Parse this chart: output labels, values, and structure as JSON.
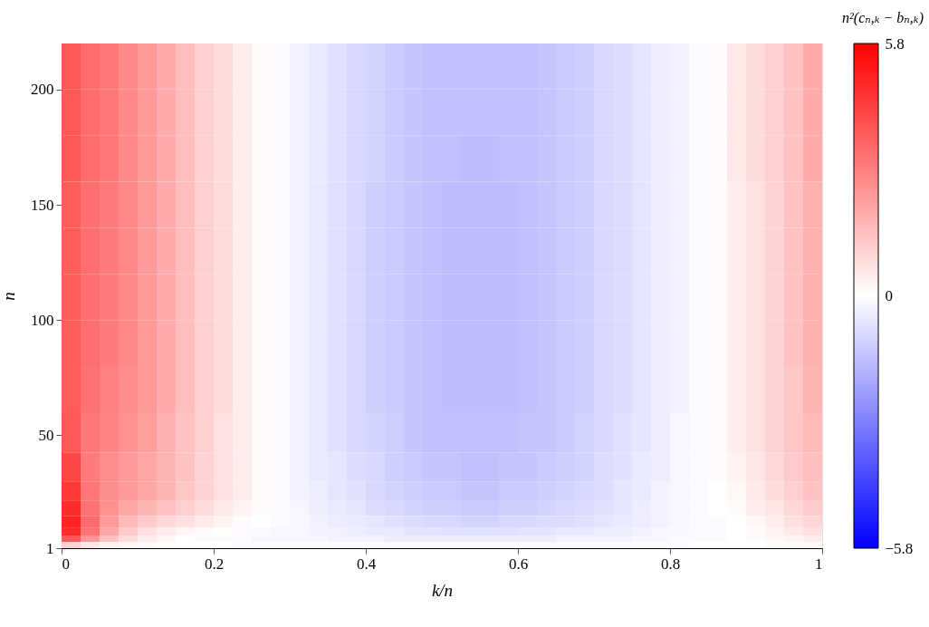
{
  "chart_data": {
    "type": "heatmap",
    "xlabel": "k/n",
    "ylabel": "n",
    "clabel": "n²(cₙ,ₖ − bₙ,ₖ)",
    "x": [
      0.0125,
      0.0375,
      0.0625,
      0.0875,
      0.1125,
      0.1375,
      0.1625,
      0.1875,
      0.2125,
      0.2375,
      0.2625,
      0.2875,
      0.3125,
      0.3375,
      0.3625,
      0.3875,
      0.4125,
      0.4375,
      0.4625,
      0.4875,
      0.5125,
      0.5375,
      0.5625,
      0.5875,
      0.6125,
      0.6375,
      0.6625,
      0.6875,
      0.7125,
      0.7375,
      0.7625,
      0.7875,
      0.8125,
      0.8375,
      0.8625,
      0.8875,
      0.9125,
      0.9375,
      0.9625,
      0.9875
    ],
    "y": [
      210,
      190,
      170,
      150,
      130,
      110,
      90,
      70,
      50,
      35,
      25,
      18,
      12,
      8,
      5,
      2.5
    ],
    "cells": [
      [
        3.8,
        3.4,
        3.1,
        2.7,
        2.3,
        1.9,
        1.5,
        1.1,
        0.8,
        0.4,
        0.1,
        -0.1,
        -0.3,
        -0.5,
        -0.7,
        -0.9,
        -1.0,
        -1.2,
        -1.3,
        -1.4,
        -1.4,
        -1.4,
        -1.4,
        -1.4,
        -1.4,
        -1.3,
        -1.2,
        -1.1,
        -0.9,
        -0.8,
        -0.6,
        -0.4,
        -0.3,
        -0.1,
        0.1,
        0.5,
        0.8,
        1.1,
        1.4,
        1.9
      ],
      [
        3.8,
        3.4,
        3.1,
        2.7,
        2.3,
        1.9,
        1.5,
        1.1,
        0.8,
        0.4,
        0.1,
        -0.1,
        -0.3,
        -0.5,
        -0.7,
        -0.9,
        -1.0,
        -1.2,
        -1.3,
        -1.4,
        -1.4,
        -1.4,
        -1.4,
        -1.4,
        -1.4,
        -1.3,
        -1.2,
        -1.1,
        -0.9,
        -0.8,
        -0.6,
        -0.4,
        -0.3,
        -0.1,
        0.1,
        0.5,
        0.8,
        1.1,
        1.4,
        1.9
      ],
      [
        3.8,
        3.4,
        3.1,
        2.7,
        2.3,
        1.9,
        1.5,
        1.1,
        0.8,
        0.4,
        0.1,
        -0.1,
        -0.3,
        -0.5,
        -0.7,
        -0.9,
        -1.0,
        -1.2,
        -1.3,
        -1.4,
        -1.4,
        -1.5,
        -1.5,
        -1.4,
        -1.4,
        -1.3,
        -1.2,
        -1.1,
        -0.9,
        -0.8,
        -0.6,
        -0.4,
        -0.3,
        -0.1,
        0.1,
        0.5,
        0.8,
        1.1,
        1.4,
        1.9
      ],
      [
        3.7,
        3.3,
        3.0,
        2.7,
        2.3,
        1.9,
        1.5,
        1.1,
        0.8,
        0.4,
        0.1,
        -0.1,
        -0.3,
        -0.5,
        -0.7,
        -0.9,
        -1.1,
        -1.2,
        -1.3,
        -1.4,
        -1.5,
        -1.5,
        -1.5,
        -1.5,
        -1.4,
        -1.3,
        -1.2,
        -1.1,
        -0.9,
        -0.8,
        -0.6,
        -0.4,
        -0.3,
        -0.1,
        0.1,
        0.4,
        0.7,
        1.0,
        1.4,
        1.8
      ],
      [
        3.7,
        3.3,
        3.0,
        2.7,
        2.3,
        1.9,
        1.5,
        1.1,
        0.8,
        0.4,
        0.1,
        -0.1,
        -0.3,
        -0.5,
        -0.7,
        -0.9,
        -1.1,
        -1.2,
        -1.3,
        -1.4,
        -1.5,
        -1.5,
        -1.5,
        -1.5,
        -1.4,
        -1.3,
        -1.2,
        -1.1,
        -0.9,
        -0.8,
        -0.6,
        -0.4,
        -0.3,
        -0.1,
        0.1,
        0.4,
        0.7,
        1.0,
        1.4,
        1.8
      ],
      [
        3.7,
        3.3,
        3.0,
        2.7,
        2.3,
        1.9,
        1.5,
        1.1,
        0.8,
        0.4,
        0.1,
        -0.1,
        -0.3,
        -0.5,
        -0.7,
        -0.9,
        -1.1,
        -1.2,
        -1.3,
        -1.4,
        -1.5,
        -1.5,
        -1.5,
        -1.5,
        -1.4,
        -1.3,
        -1.2,
        -1.1,
        -0.9,
        -0.8,
        -0.6,
        -0.4,
        -0.3,
        -0.1,
        0.1,
        0.4,
        0.7,
        1.0,
        1.4,
        1.8
      ],
      [
        3.7,
        3.3,
        3.0,
        2.7,
        2.3,
        1.9,
        1.5,
        1.1,
        0.8,
        0.4,
        0.1,
        -0.1,
        -0.3,
        -0.5,
        -0.7,
        -0.9,
        -1.1,
        -1.2,
        -1.3,
        -1.4,
        -1.5,
        -1.5,
        -1.5,
        -1.5,
        -1.4,
        -1.3,
        -1.2,
        -1.1,
        -0.9,
        -0.8,
        -0.6,
        -0.4,
        -0.3,
        -0.1,
        0.1,
        0.4,
        0.7,
        1.0,
        1.4,
        1.8
      ],
      [
        3.7,
        3.2,
        2.9,
        2.6,
        2.3,
        1.9,
        1.5,
        1.1,
        0.8,
        0.4,
        0.1,
        -0.1,
        -0.3,
        -0.5,
        -0.7,
        -0.9,
        -1.1,
        -1.2,
        -1.3,
        -1.4,
        -1.5,
        -1.5,
        -1.5,
        -1.5,
        -1.4,
        -1.3,
        -1.2,
        -1.1,
        -0.9,
        -0.8,
        -0.6,
        -0.4,
        -0.3,
        -0.1,
        0.1,
        0.4,
        0.7,
        1.0,
        1.3,
        1.7
      ],
      [
        3.8,
        3.1,
        2.8,
        2.5,
        2.2,
        1.8,
        1.4,
        1.1,
        0.7,
        0.4,
        0.1,
        -0.1,
        -0.3,
        -0.5,
        -0.7,
        -0.9,
        -1.0,
        -1.1,
        -1.3,
        -1.4,
        -1.4,
        -1.4,
        -1.4,
        -1.4,
        -1.3,
        -1.3,
        -1.2,
        -1.0,
        -0.9,
        -0.7,
        -0.6,
        -0.4,
        -0.2,
        -0.1,
        0.1,
        0.4,
        0.7,
        1.0,
        1.3,
        1.6
      ],
      [
        4.2,
        3.0,
        2.6,
        2.3,
        2.0,
        1.7,
        1.4,
        1.0,
        0.7,
        0.4,
        0.1,
        -0.1,
        -0.3,
        -0.5,
        -0.6,
        -0.8,
        -0.9,
        -1.1,
        -1.2,
        -1.3,
        -1.3,
        -1.4,
        -1.4,
        -1.3,
        -1.3,
        -1.2,
        -1.1,
        -1.0,
        -0.8,
        -0.7,
        -0.5,
        -0.4,
        -0.2,
        -0.1,
        0.1,
        0.3,
        0.6,
        0.9,
        1.2,
        1.5
      ],
      [
        4.5,
        3.1,
        2.6,
        2.3,
        2.0,
        1.7,
        1.3,
        1.0,
        0.7,
        0.4,
        0.1,
        -0.1,
        -0.3,
        -0.4,
        -0.6,
        -0.7,
        -0.9,
        -1.0,
        -1.1,
        -1.2,
        -1.2,
        -1.3,
        -1.3,
        -1.2,
        -1.2,
        -1.1,
        -1.0,
        -0.9,
        -0.8,
        -0.6,
        -0.5,
        -0.3,
        -0.2,
        -0.1,
        0.0,
        0.2,
        0.5,
        0.8,
        1.1,
        1.4
      ],
      [
        4.8,
        3.2,
        2.5,
        2.0,
        1.7,
        1.4,
        1.1,
        0.8,
        0.5,
        0.3,
        0.1,
        -0.1,
        -0.2,
        -0.4,
        -0.5,
        -0.6,
        -0.8,
        -0.9,
        -1.0,
        -1.1,
        -1.1,
        -1.2,
        -1.2,
        -1.1,
        -1.1,
        -1.0,
        -0.9,
        -0.8,
        -0.7,
        -0.6,
        -0.4,
        -0.3,
        -0.2,
        -0.1,
        0.0,
        0.1,
        0.4,
        0.6,
        0.9,
        1.2
      ],
      [
        5.0,
        3.4,
        2.3,
        1.6,
        1.2,
        0.9,
        0.7,
        0.5,
        0.3,
        0.1,
        0.0,
        -0.1,
        -0.2,
        -0.3,
        -0.4,
        -0.5,
        -0.6,
        -0.7,
        -0.8,
        -0.9,
        -0.9,
        -1.0,
        -1.0,
        -0.9,
        -0.9,
        -0.8,
        -0.8,
        -0.7,
        -0.6,
        -0.5,
        -0.4,
        -0.3,
        -0.2,
        -0.1,
        -0.1,
        0.0,
        0.2,
        0.4,
        0.7,
        0.9
      ],
      [
        4.8,
        3.2,
        2.0,
        1.2,
        0.7,
        0.4,
        0.2,
        0.1,
        0.0,
        -0.1,
        -0.1,
        -0.2,
        -0.2,
        -0.3,
        -0.3,
        -0.4,
        -0.5,
        -0.5,
        -0.6,
        -0.6,
        -0.7,
        -0.7,
        -0.7,
        -0.7,
        -0.6,
        -0.6,
        -0.5,
        -0.5,
        -0.4,
        -0.4,
        -0.3,
        -0.2,
        -0.2,
        -0.1,
        -0.1,
        0.0,
        0.1,
        0.3,
        0.5,
        0.7
      ],
      [
        3.8,
        2.4,
        1.4,
        0.8,
        0.4,
        0.2,
        0.0,
        -0.1,
        -0.1,
        -0.1,
        -0.2,
        -0.2,
        -0.2,
        -0.2,
        -0.3,
        -0.3,
        -0.3,
        -0.4,
        -0.4,
        -0.4,
        -0.4,
        -0.4,
        -0.4,
        -0.4,
        -0.4,
        -0.4,
        -0.3,
        -0.3,
        -0.3,
        -0.3,
        -0.2,
        -0.2,
        -0.1,
        -0.1,
        -0.1,
        0.0,
        0.1,
        0.2,
        0.3,
        0.4
      ],
      [
        1.0,
        0.6,
        0.3,
        0.2,
        0.1,
        0.0,
        0.0,
        0.0,
        0.0,
        -0.1,
        -0.1,
        -0.1,
        -0.1,
        -0.1,
        -0.1,
        -0.1,
        -0.1,
        -0.1,
        -0.1,
        -0.1,
        -0.1,
        -0.1,
        -0.1,
        -0.1,
        -0.1,
        -0.1,
        -0.1,
        -0.1,
        -0.1,
        -0.1,
        -0.1,
        -0.1,
        -0.1,
        0.0,
        0.0,
        0.0,
        0.0,
        0.1,
        0.1,
        0.1
      ]
    ],
    "xlim": [
      0,
      1
    ],
    "xticks": [
      0,
      0.2,
      0.4,
      0.6,
      0.8,
      1
    ],
    "ylim": [
      1,
      220
    ],
    "yticks": [
      1,
      50,
      100,
      150,
      200
    ],
    "clim": [
      -5.8,
      5.8
    ],
    "cticks": [
      {
        "value": -5.8,
        "label": "−5.8"
      },
      0,
      5.8
    ],
    "colors": [
      "#0000ff",
      "#ffffff",
      "#ff0000"
    ]
  }
}
